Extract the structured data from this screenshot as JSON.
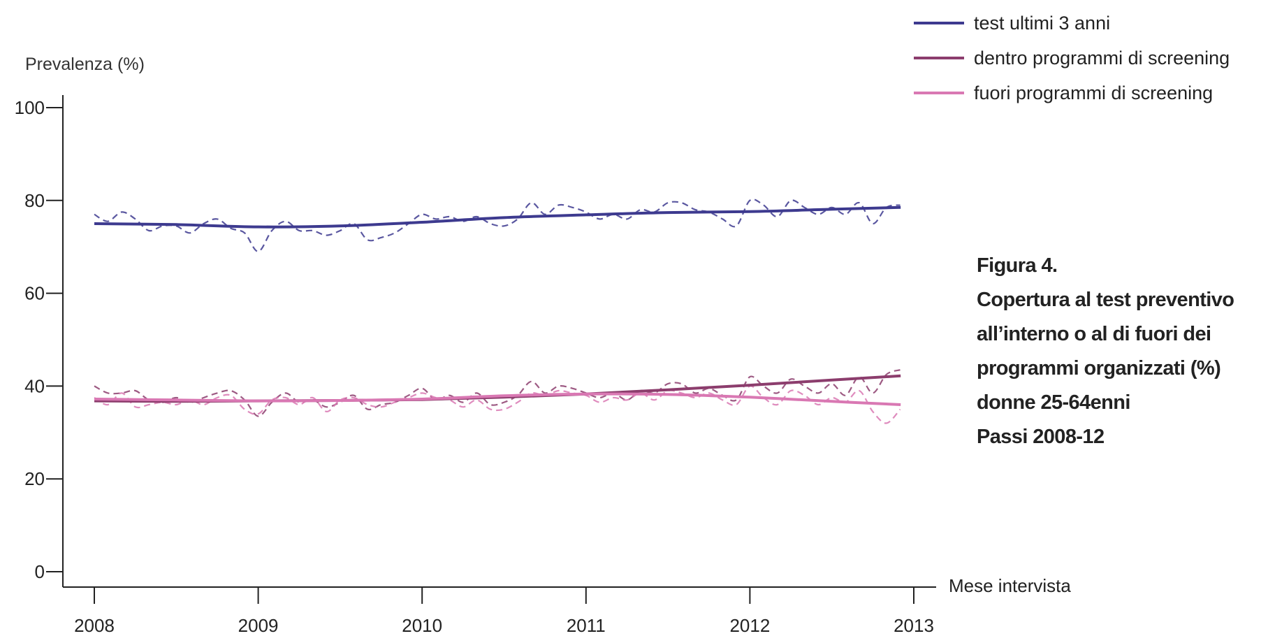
{
  "chart_data": {
    "type": "line",
    "ylabel": "Prevalenza (%)",
    "xlabel": "Mese intervista",
    "ylim": [
      0,
      100
    ],
    "yticks": [
      0,
      20,
      40,
      60,
      80,
      100
    ],
    "xlim": [
      2008,
      2013
    ],
    "xticks": [
      2008,
      2009,
      2010,
      2011,
      2012,
      2013
    ],
    "grid": false,
    "legend_position": "top-right",
    "series": [
      {
        "name": "test ultimi 3 anni",
        "color": "#3d3a8f",
        "trend": {
          "x": [
            2008.0,
            2008.5,
            2009.0,
            2009.5,
            2010.0,
            2010.5,
            2011.0,
            2011.5,
            2012.0,
            2012.5,
            2012.92
          ],
          "y": [
            75,
            74.8,
            74.3,
            74.5,
            75.3,
            76.3,
            76.9,
            77.4,
            77.6,
            78.1,
            78.5
          ]
        },
        "monthly": {
          "x": [
            2008.0,
            2008.083,
            2008.167,
            2008.25,
            2008.333,
            2008.417,
            2008.5,
            2008.583,
            2008.667,
            2008.75,
            2008.833,
            2008.917,
            2009.0,
            2009.083,
            2009.167,
            2009.25,
            2009.333,
            2009.417,
            2009.5,
            2009.583,
            2009.667,
            2009.75,
            2009.833,
            2009.917,
            2010.0,
            2010.083,
            2010.167,
            2010.25,
            2010.333,
            2010.417,
            2010.5,
            2010.583,
            2010.667,
            2010.75,
            2010.833,
            2010.917,
            2011.0,
            2011.083,
            2011.167,
            2011.25,
            2011.333,
            2011.417,
            2011.5,
            2011.583,
            2011.667,
            2011.75,
            2011.833,
            2011.917,
            2012.0,
            2012.083,
            2012.167,
            2012.25,
            2012.333,
            2012.417,
            2012.5,
            2012.583,
            2012.667,
            2012.75,
            2012.833,
            2012.917
          ],
          "y": [
            77,
            75.5,
            77.5,
            76,
            73.5,
            74.5,
            74.5,
            73,
            75,
            76,
            74,
            73,
            69,
            73.5,
            75.5,
            73.5,
            73.5,
            72.5,
            73.5,
            75,
            71.5,
            72,
            73,
            75,
            77,
            76,
            76.5,
            75.5,
            76.5,
            75,
            74.5,
            76,
            79.5,
            77,
            79,
            78.5,
            77.5,
            76,
            77,
            76,
            78,
            77.5,
            79.5,
            79.5,
            78,
            77.5,
            76,
            74.5,
            80,
            79,
            76.5,
            80,
            78.5,
            77,
            78.5,
            77,
            79.5,
            75,
            78.5,
            79
          ]
        }
      },
      {
        "name": "dentro programmi di screening",
        "color": "#8c3d6d",
        "trend": {
          "x": [
            2008.0,
            2008.5,
            2009.0,
            2009.5,
            2010.0,
            2010.5,
            2011.0,
            2011.5,
            2012.0,
            2012.5,
            2012.92
          ],
          "y": [
            36.8,
            36.7,
            36.8,
            36.9,
            37.1,
            37.6,
            38.3,
            39.2,
            40.2,
            41.3,
            42.2
          ]
        },
        "monthly": {
          "x": [
            2008.0,
            2008.083,
            2008.167,
            2008.25,
            2008.333,
            2008.417,
            2008.5,
            2008.583,
            2008.667,
            2008.75,
            2008.833,
            2008.917,
            2009.0,
            2009.083,
            2009.167,
            2009.25,
            2009.333,
            2009.417,
            2009.5,
            2009.583,
            2009.667,
            2009.75,
            2009.833,
            2009.917,
            2010.0,
            2010.083,
            2010.167,
            2010.25,
            2010.333,
            2010.417,
            2010.5,
            2010.583,
            2010.667,
            2010.75,
            2010.833,
            2010.917,
            2011.0,
            2011.083,
            2011.167,
            2011.25,
            2011.333,
            2011.417,
            2011.5,
            2011.583,
            2011.667,
            2011.75,
            2011.833,
            2011.917,
            2012.0,
            2012.083,
            2012.167,
            2012.25,
            2012.333,
            2012.417,
            2012.5,
            2012.583,
            2012.667,
            2012.75,
            2012.833,
            2012.917
          ],
          "y": [
            40,
            38.5,
            38.5,
            39,
            37,
            36.5,
            37.5,
            36.5,
            37.5,
            38.5,
            39,
            37,
            33.5,
            36.5,
            38.5,
            36.5,
            37,
            35.5,
            36.5,
            38,
            35,
            36,
            36.5,
            38,
            39.5,
            37,
            38,
            36.5,
            38.5,
            36,
            36.5,
            38,
            41,
            38.5,
            40,
            39.5,
            38.5,
            37.5,
            38.5,
            37,
            39,
            38.5,
            40.5,
            40.5,
            38.5,
            39.5,
            38,
            37,
            42,
            40,
            38.5,
            41.5,
            40,
            38.5,
            40.5,
            38,
            42,
            38.5,
            42.5,
            43.5
          ]
        }
      },
      {
        "name": "fuori programmi di screening",
        "color": "#d978b3",
        "trend": {
          "x": [
            2008.0,
            2008.5,
            2009.0,
            2009.5,
            2010.0,
            2010.5,
            2011.0,
            2011.5,
            2012.0,
            2012.5,
            2012.92
          ],
          "y": [
            37.2,
            37.0,
            36.8,
            36.9,
            37.2,
            37.9,
            38.3,
            38.2,
            37.6,
            36.7,
            36.0
          ]
        },
        "monthly": {
          "x": [
            2008.0,
            2008.083,
            2008.167,
            2008.25,
            2008.333,
            2008.417,
            2008.5,
            2008.583,
            2008.667,
            2008.75,
            2008.833,
            2008.917,
            2009.0,
            2009.083,
            2009.167,
            2009.25,
            2009.333,
            2009.417,
            2009.5,
            2009.583,
            2009.667,
            2009.75,
            2009.833,
            2009.917,
            2010.0,
            2010.083,
            2010.167,
            2010.25,
            2010.333,
            2010.417,
            2010.5,
            2010.583,
            2010.667,
            2010.75,
            2010.833,
            2010.917,
            2011.0,
            2011.083,
            2011.167,
            2011.25,
            2011.333,
            2011.417,
            2011.5,
            2011.583,
            2011.667,
            2011.75,
            2011.833,
            2011.917,
            2012.0,
            2012.083,
            2012.167,
            2012.25,
            2012.333,
            2012.417,
            2012.5,
            2012.583,
            2012.667,
            2012.75,
            2012.833,
            2012.917
          ],
          "y": [
            37.5,
            36,
            38.5,
            35.5,
            36,
            36.5,
            36,
            37,
            36,
            37.5,
            38,
            35,
            34,
            37,
            37.5,
            36,
            37.5,
            34.5,
            37,
            37.5,
            36,
            35.5,
            36.5,
            37.5,
            38.5,
            37.5,
            37,
            35.5,
            37,
            35,
            35,
            36.5,
            38.5,
            38,
            39,
            38.5,
            38,
            36.5,
            37.5,
            37,
            38.5,
            37,
            39,
            38.5,
            37.5,
            38.5,
            37,
            36,
            40,
            37.5,
            36,
            39,
            38,
            36,
            37.5,
            36.5,
            39,
            34.5,
            32,
            35
          ]
        }
      }
    ]
  },
  "caption": {
    "lines": [
      "Figura 4.",
      "Copertura al test preventivo",
      "all’interno o al di fuori dei",
      "programmi organizzati (%)",
      "donne 25-64enni",
      "Passi 2008-12"
    ]
  }
}
